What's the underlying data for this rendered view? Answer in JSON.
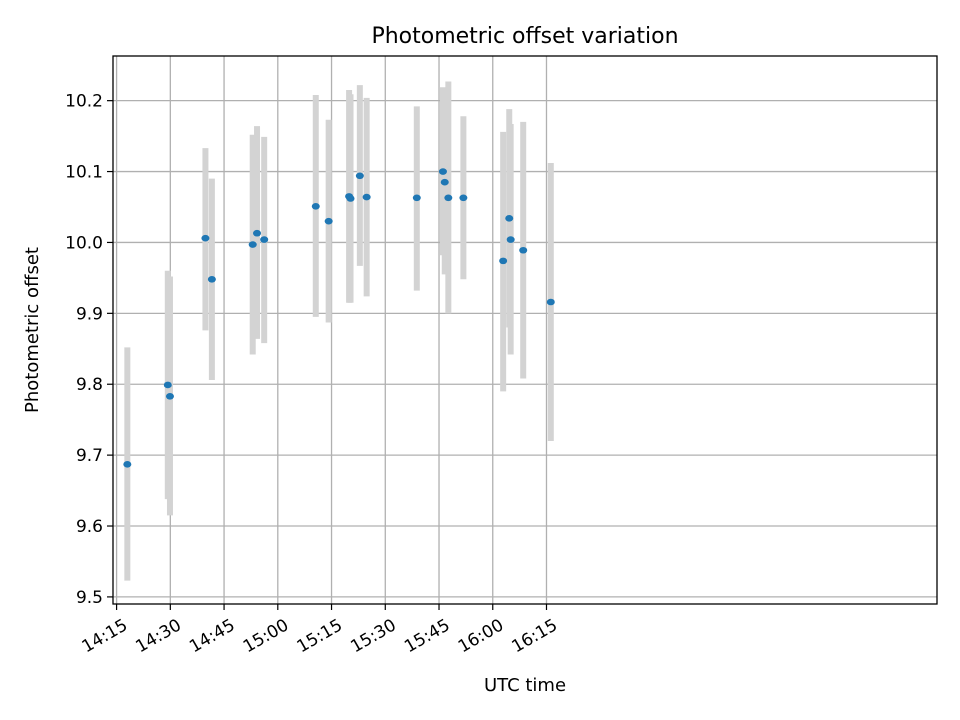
{
  "chart_data": {
    "type": "scatter",
    "title": "Photometric offset variation",
    "xlabel": "UTC time",
    "ylabel": "Photometric offset",
    "xlim": [
      854,
      1084
    ],
    "ylim": [
      9.49,
      10.263
    ],
    "x_ticks": [
      {
        "value": 855,
        "label": "14:15"
      },
      {
        "value": 870,
        "label": "14:30"
      },
      {
        "value": 885,
        "label": "14:45"
      },
      {
        "value": 900,
        "label": "15:00"
      },
      {
        "value": 915,
        "label": "15:15"
      },
      {
        "value": 930,
        "label": "15:30"
      },
      {
        "value": 945,
        "label": "15:45"
      },
      {
        "value": 960,
        "label": "16:00"
      },
      {
        "value": 975,
        "label": "16:15"
      }
    ],
    "y_ticks": [
      {
        "value": 9.5,
        "label": "9.5"
      },
      {
        "value": 9.6,
        "label": "9.6"
      },
      {
        "value": 9.7,
        "label": "9.7"
      },
      {
        "value": 9.8,
        "label": "9.8"
      },
      {
        "value": 9.9,
        "label": "9.9"
      },
      {
        "value": 10.0,
        "label": "10.0"
      },
      {
        "value": 10.1,
        "label": "10.1"
      },
      {
        "value": 10.2,
        "label": "10.2"
      }
    ],
    "grid": true,
    "x_unit": "minutes since 00:00 UTC",
    "color_point": "#1f77b4",
    "color_errorbar": "#d3d3d3",
    "points": [
      {
        "x": 858.0,
        "y": 9.687,
        "ylow": 9.523,
        "yhigh": 9.852
      },
      {
        "x": 869.3,
        "y": 9.799,
        "ylow": 9.638,
        "yhigh": 9.96
      },
      {
        "x": 869.9,
        "y": 9.783,
        "ylow": 9.615,
        "yhigh": 9.952
      },
      {
        "x": 879.8,
        "y": 10.006,
        "ylow": 9.876,
        "yhigh": 10.133
      },
      {
        "x": 881.6,
        "y": 9.948,
        "ylow": 9.806,
        "yhigh": 10.09
      },
      {
        "x": 893.0,
        "y": 9.997,
        "ylow": 9.842,
        "yhigh": 10.152
      },
      {
        "x": 894.2,
        "y": 10.013,
        "ylow": 9.864,
        "yhigh": 10.164
      },
      {
        "x": 896.2,
        "y": 10.004,
        "ylow": 9.858,
        "yhigh": 10.149
      },
      {
        "x": 910.6,
        "y": 10.051,
        "ylow": 9.895,
        "yhigh": 10.208
      },
      {
        "x": 914.2,
        "y": 10.03,
        "ylow": 9.887,
        "yhigh": 10.173
      },
      {
        "x": 919.9,
        "y": 10.065,
        "ylow": 9.915,
        "yhigh": 10.215
      },
      {
        "x": 920.3,
        "y": 10.062,
        "ylow": 9.915,
        "yhigh": 10.209
      },
      {
        "x": 922.9,
        "y": 10.094,
        "ylow": 9.967,
        "yhigh": 10.222
      },
      {
        "x": 924.8,
        "y": 10.064,
        "ylow": 9.924,
        "yhigh": 10.204
      },
      {
        "x": 938.8,
        "y": 10.063,
        "ylow": 9.932,
        "yhigh": 10.192
      },
      {
        "x": 946.1,
        "y": 10.1,
        "ylow": 9.982,
        "yhigh": 10.219
      },
      {
        "x": 946.6,
        "y": 10.085,
        "ylow": 9.955,
        "yhigh": 10.217
      },
      {
        "x": 947.6,
        "y": 10.063,
        "ylow": 9.9,
        "yhigh": 10.227
      },
      {
        "x": 951.8,
        "y": 10.063,
        "ylow": 9.948,
        "yhigh": 10.178
      },
      {
        "x": 962.9,
        "y": 9.974,
        "ylow": 9.79,
        "yhigh": 10.156
      },
      {
        "x": 964.6,
        "y": 10.034,
        "ylow": 9.88,
        "yhigh": 10.188
      },
      {
        "x": 965.0,
        "y": 10.004,
        "ylow": 9.842,
        "yhigh": 10.167
      },
      {
        "x": 968.5,
        "y": 9.989,
        "ylow": 9.808,
        "yhigh": 10.17
      },
      {
        "x": 976.2,
        "y": 9.916,
        "ylow": 9.72,
        "yhigh": 10.112
      }
    ]
  }
}
